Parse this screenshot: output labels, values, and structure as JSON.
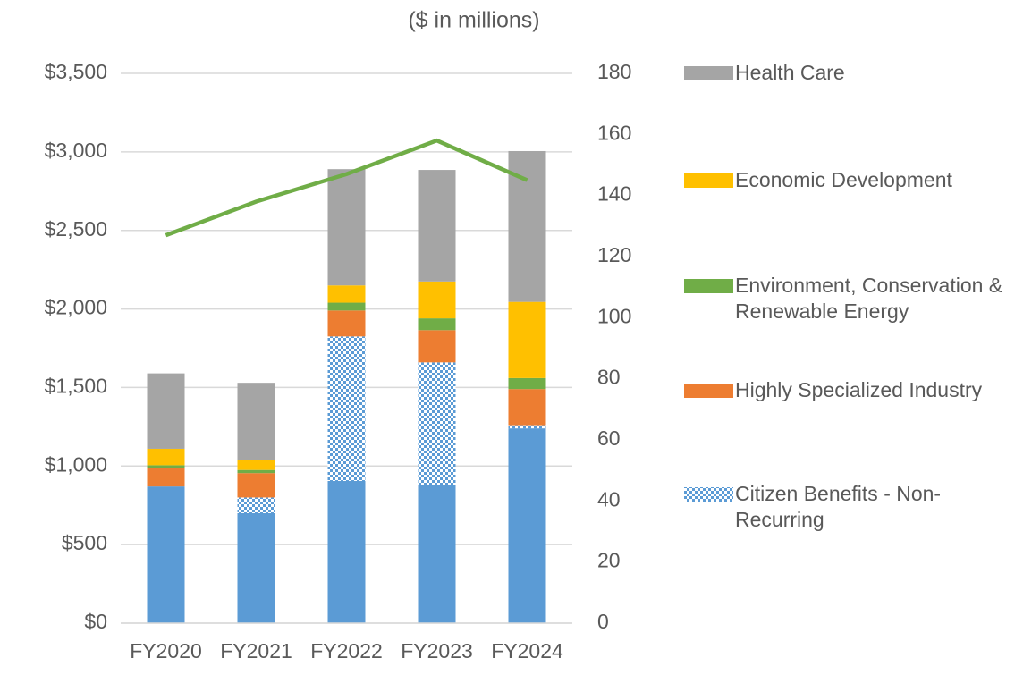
{
  "chart_data": {
    "type": "bar",
    "subtitle": "($ in millions)",
    "categories": [
      "FY2020",
      "FY2021",
      "FY2022",
      "FY2023",
      "FY2024"
    ],
    "series": [
      {
        "color": "#5b9bd5",
        "values": [
          870,
          700,
          905,
          880,
          1240
        ]
      },
      {
        "name": "Citizen Benefits - Non-Recurring",
        "color": "#5b9bd5",
        "pattern": "checker",
        "values": [
          0,
          100,
          920,
          780,
          20
        ]
      },
      {
        "name": "Highly Specialized Industry",
        "color": "#ed7d31",
        "values": [
          115,
          155,
          165,
          205,
          230
        ]
      },
      {
        "name": "Environment, Conservation & Renewable Energy",
        "color": "#70ad47",
        "values": [
          20,
          20,
          50,
          75,
          70
        ]
      },
      {
        "name": "Economic Development",
        "color": "#ffc000",
        "values": [
          105,
          65,
          110,
          235,
          485
        ]
      },
      {
        "name": "Health Care",
        "color": "#a5a5a5",
        "values": [
          480,
          490,
          740,
          710,
          960
        ]
      },
      {
        "type": "line",
        "axis": "y2",
        "color": "#70ad47",
        "values": [
          127,
          138,
          147,
          158,
          145
        ]
      }
    ],
    "ylim": [
      0,
      3500
    ],
    "yticks": [
      {
        "value": 0,
        "label": "$0"
      },
      {
        "value": 500,
        "label": "$500"
      },
      {
        "value": 1000,
        "label": "$1,000"
      },
      {
        "value": 1500,
        "label": "$1,500"
      },
      {
        "value": 2000,
        "label": "$2,000"
      },
      {
        "value": 2500,
        "label": "$2,500"
      },
      {
        "value": 3000,
        "label": "$3,000"
      },
      {
        "value": 3500,
        "label": "$3,500"
      }
    ],
    "y2lim": [
      0,
      180
    ],
    "y2ticks": [
      0,
      20,
      40,
      60,
      80,
      100,
      120,
      140,
      160,
      180
    ],
    "grid": true
  }
}
